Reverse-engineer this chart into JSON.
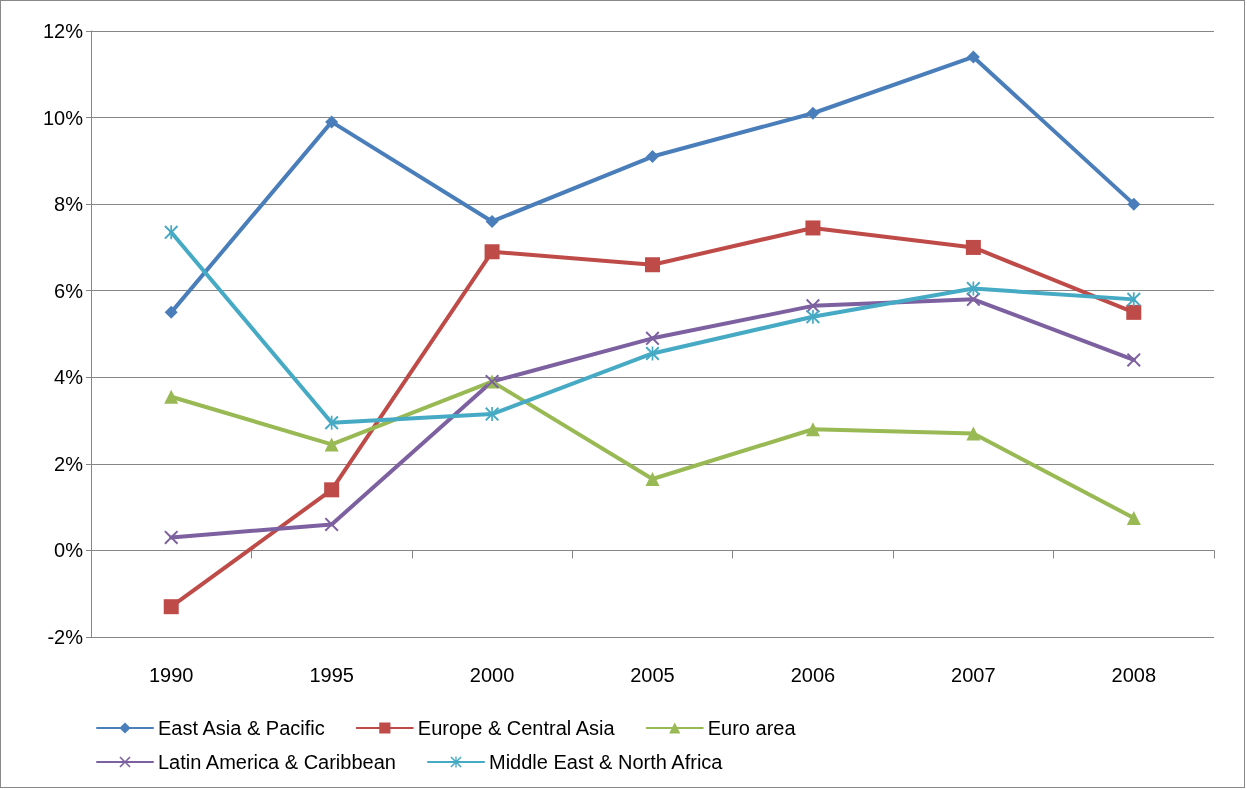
{
  "chart_data": {
    "type": "line",
    "categories": [
      "1990",
      "1995",
      "2000",
      "2005",
      "2006",
      "2007",
      "2008"
    ],
    "series": [
      {
        "name": "East Asia & Pacific",
        "color": "#4a7ebb",
        "marker": "diamond",
        "values": [
          5.5,
          9.9,
          7.6,
          9.1,
          10.1,
          11.4,
          8.0
        ]
      },
      {
        "name": "Europe & Central Asia",
        "color": "#be4b48",
        "marker": "square",
        "values": [
          -1.3,
          1.4,
          6.9,
          6.6,
          7.45,
          7.0,
          5.5
        ]
      },
      {
        "name": "Euro area",
        "color": "#98b954",
        "marker": "triangle",
        "values": [
          3.55,
          2.45,
          3.9,
          1.65,
          2.8,
          2.7,
          0.75
        ]
      },
      {
        "name": "Latin America & Caribbean",
        "color": "#7d60a0",
        "marker": "cross",
        "values": [
          0.3,
          0.6,
          3.9,
          4.9,
          5.65,
          5.8,
          4.4
        ]
      },
      {
        "name": "Middle East & North Africa",
        "color": "#46aac5",
        "marker": "star",
        "values": [
          7.35,
          2.95,
          3.15,
          4.55,
          5.4,
          6.05,
          5.8
        ]
      }
    ],
    "ylim": [
      -2,
      12
    ],
    "yticks": [
      {
        "value": -2,
        "label": "-2%"
      },
      {
        "value": 0,
        "label": "0%"
      },
      {
        "value": 2,
        "label": "2%"
      },
      {
        "value": 4,
        "label": "4%"
      },
      {
        "value": 6,
        "label": "6%"
      },
      {
        "value": 8,
        "label": "8%"
      },
      {
        "value": 10,
        "label": "10%"
      },
      {
        "value": 12,
        "label": "12%"
      }
    ],
    "grid": "y",
    "legend": "bottom",
    "line_style": "solid"
  }
}
